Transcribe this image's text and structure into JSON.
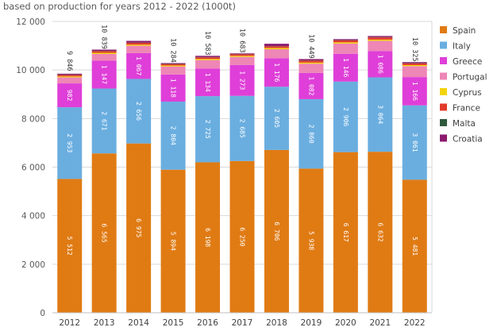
{
  "chart_data": {
    "type": "bar",
    "stacked": true,
    "title": "based on production for years 2012 - 2022 (1000t)",
    "categories": [
      "2012",
      "2013",
      "2014",
      "2015",
      "2016",
      "2017",
      "2018",
      "2019",
      "2020",
      "2021",
      "2022"
    ],
    "ylim": [
      0,
      12000
    ],
    "yticks": [
      0,
      2000,
      4000,
      6000,
      8000,
      10000,
      12000
    ],
    "ytick_labels": [
      "0",
      "2 000",
      "4 000",
      "6 000",
      "8 000",
      "10 000",
      "12 000"
    ],
    "grid": true,
    "legend_position": "right",
    "series": [
      {
        "name": "Spain",
        "color": "#e07b14",
        "values": [
          5512,
          6565,
          6975,
          5894,
          6198,
          6250,
          6706,
          5938,
          6617,
          6632,
          5481
        ],
        "labels": [
          "5 512",
          "6 565",
          "6 975",
          "5 894",
          "6 198",
          "6 250",
          "6 706",
          "5 938",
          "6 617",
          "6 632",
          "5 481"
        ]
      },
      {
        "name": "Italy",
        "color": "#6aaee0",
        "values": [
          2953,
          2671,
          2656,
          2804,
          2725,
          2685,
          2605,
          2860,
          2906,
          3064,
          3061
        ],
        "labels": [
          "2 953",
          "2 671",
          "2 656",
          "2 804",
          "2 725",
          "2 685",
          "2 605",
          "2 860",
          "2 906",
          "3 064",
          "3 061"
        ]
      },
      {
        "name": "Greece",
        "color": "#df3fd8",
        "values": [
          982,
          1147,
          1067,
          1118,
          1134,
          1273,
          1176,
          1082,
          1146,
          1086,
          1166
        ],
        "labels": [
          "982",
          "1 147",
          "1 067",
          "1 118",
          "1 134",
          "1 273",
          "1 176",
          "1 082",
          "1 146",
          "1 086",
          "1 166"
        ]
      },
      {
        "name": "Portugal",
        "color": "#ee86b6",
        "values": [
          250,
          280,
          300,
          330,
          350,
          330,
          370,
          380,
          420,
          420,
          450
        ]
      },
      {
        "name": "Cyprus",
        "color": "#f2d40c",
        "values": [
          40,
          45,
          45,
          40,
          45,
          45,
          50,
          45,
          50,
          50,
          45
        ]
      },
      {
        "name": "France",
        "color": "#e23b2a",
        "values": [
          60,
          70,
          75,
          55,
          70,
          60,
          70,
          80,
          80,
          90,
          70
        ]
      },
      {
        "name": "Malta",
        "color": "#2f5b3d",
        "values": [
          10,
          10,
          10,
          10,
          10,
          10,
          10,
          10,
          10,
          10,
          10
        ]
      },
      {
        "name": "Croatia",
        "color": "#8b1a6e",
        "values": [
          39,
          51,
          72,
          33,
          51,
          30,
          93,
          54,
          41,
          48,
          42
        ]
      }
    ],
    "totals": [
      9846,
      10839,
      11200,
      10284,
      10583,
      10683,
      11080,
      10449,
      11270,
      11400,
      10325
    ],
    "total_labels": [
      "9 846",
      "10 839",
      "",
      "10 284",
      "10 583",
      "10 683",
      "",
      "10 449",
      "",
      "",
      "10 325"
    ],
    "grid_color": "#d9d9d9",
    "axis_color": "#bfbfbf"
  }
}
